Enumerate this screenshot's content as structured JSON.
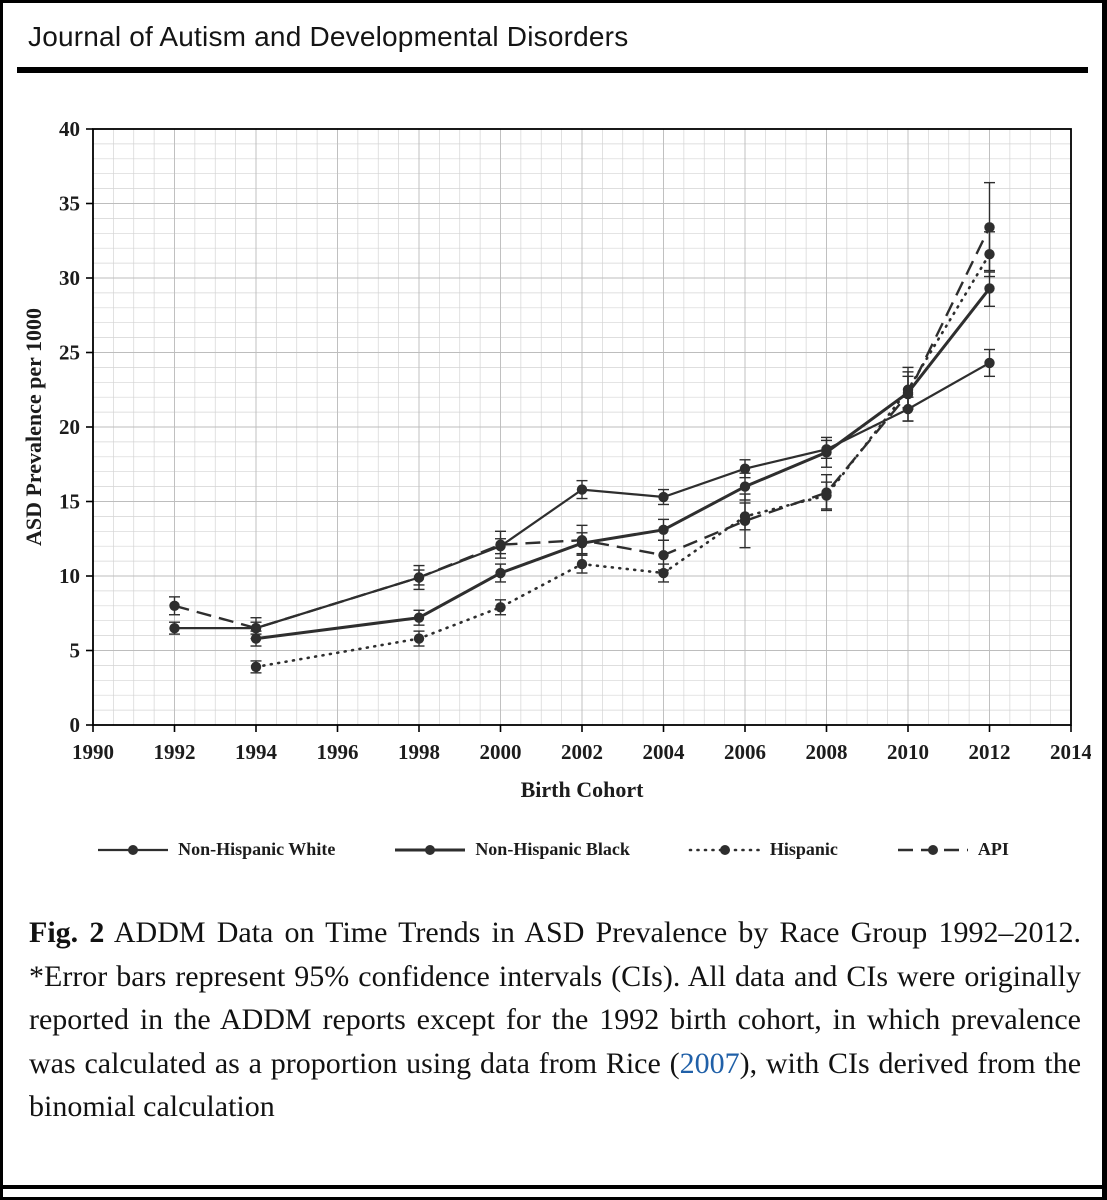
{
  "page": {
    "journal_title": "Journal of Autism and Developmental Disorders"
  },
  "chart_data": {
    "type": "line",
    "title": "",
    "xlabel": "Birth Cohort",
    "ylabel": "ASD Prevalence per 1000",
    "xlim": [
      1990,
      2014
    ],
    "ylim": [
      0,
      40
    ],
    "x_tick_step": 2,
    "y_tick_step": 5,
    "grid": true,
    "legend_position": "bottom",
    "error_bars": "95% confidence intervals",
    "x": [
      1992,
      1994,
      1998,
      2000,
      2002,
      2004,
      2006,
      2008,
      2010,
      2012
    ],
    "series": [
      {
        "name": "Non-Hispanic White",
        "line_style": "solid",
        "values": [
          6.5,
          6.5,
          9.9,
          12.0,
          15.8,
          15.3,
          17.2,
          18.5,
          21.2,
          24.3
        ],
        "ci_halfwidth": [
          0.4,
          0.4,
          0.5,
          0.5,
          0.6,
          0.5,
          0.6,
          0.6,
          0.8,
          0.9
        ]
      },
      {
        "name": "Non-Hispanic Black",
        "line_style": "solid",
        "values": [
          null,
          5.8,
          7.2,
          10.2,
          12.2,
          13.1,
          16.0,
          18.3,
          22.3,
          29.3
        ],
        "ci_halfwidth": [
          null,
          0.5,
          0.5,
          0.6,
          0.7,
          0.7,
          0.9,
          1.0,
          1.1,
          1.2
        ]
      },
      {
        "name": "Hispanic",
        "line_style": "dotted",
        "values": [
          null,
          3.9,
          5.8,
          7.9,
          10.8,
          10.2,
          14.0,
          15.4,
          22.5,
          31.6
        ],
        "ci_halfwidth": [
          null,
          0.4,
          0.5,
          0.5,
          0.6,
          0.6,
          0.9,
          0.9,
          1.2,
          1.5
        ]
      },
      {
        "name": "API",
        "line_style": "dashed",
        "values": [
          8.0,
          6.5,
          9.9,
          12.1,
          12.4,
          11.4,
          13.7,
          15.6,
          22.2,
          33.4
        ],
        "ci_halfwidth": [
          0.6,
          0.7,
          0.8,
          0.9,
          1.0,
          1.0,
          1.8,
          1.2,
          1.8,
          3.0
        ]
      }
    ]
  },
  "caption": {
    "fig_label": "Fig. 2",
    "text_before_link": " ADDM Data on Time Trends in ASD Prevalence by Race Group 1992–2012. *Error bars represent 95% confidence intervals (CIs). All data and CIs were originally reported in the ADDM reports except for the 1992 birth cohort, in which prevalence was calculated as a proportion using data from Rice (",
    "link_text": "2007",
    "text_after_link": "), with CIs derived from the binomial calculation"
  },
  "colors": {
    "ink": "#2e2e2e",
    "grid_minor": "#d4d4d4",
    "grid_major": "#bdbdbd",
    "frame": "#000000",
    "link": "#2060a8",
    "rule": "#000000"
  }
}
